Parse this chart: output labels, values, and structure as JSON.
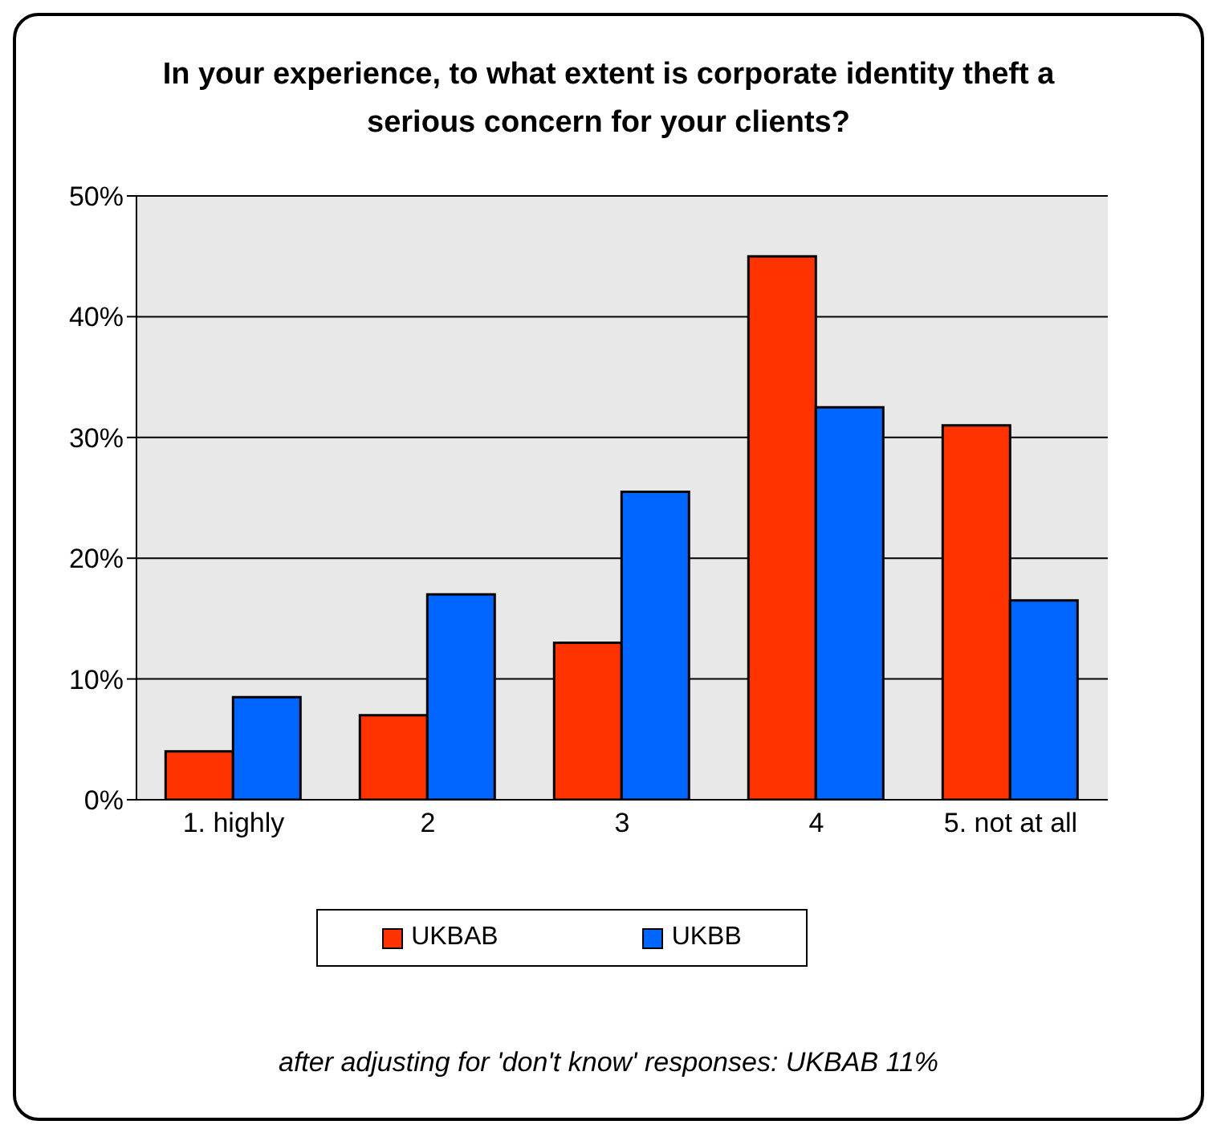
{
  "chart_data": {
    "type": "bar",
    "title": "In your experience, to what extent is corporate identity theft a serious concern for your clients?",
    "categories": [
      "1. highly",
      "2",
      "3",
      "4",
      "5. not at all"
    ],
    "series": [
      {
        "name": "UKBAB",
        "color": "#ff3300",
        "values": [
          4,
          7,
          13,
          45,
          31
        ]
      },
      {
        "name": "UKBB",
        "color": "#0066ff",
        "values": [
          8.5,
          17,
          25.5,
          32.5,
          16.5
        ]
      }
    ],
    "ylim": [
      0,
      50
    ],
    "yticks": [
      {
        "value": 0,
        "label": "0%"
      },
      {
        "value": 10,
        "label": "10%"
      },
      {
        "value": 20,
        "label": "20%"
      },
      {
        "value": 30,
        "label": "30%"
      },
      {
        "value": 40,
        "label": "40%"
      },
      {
        "value": 50,
        "label": "50%"
      }
    ],
    "grid": "y",
    "legend": "bottom",
    "annotations": [
      "after adjusting for 'don't know' responses: UKBAB 11%"
    ]
  }
}
